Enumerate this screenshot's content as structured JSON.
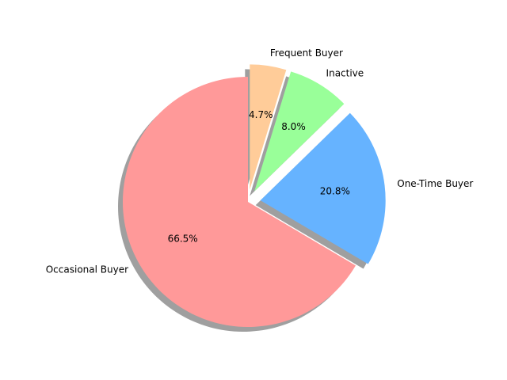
{
  "chart_data": {
    "type": "pie",
    "title": "",
    "start_angle_deg": 90,
    "counterclock": true,
    "shadow": true,
    "slices": [
      {
        "label": "Occasional Buyer",
        "value": 66.5,
        "pct_text": "66.5%",
        "color": "#ff9999",
        "exploded": false
      },
      {
        "label": "One-Time Buyer",
        "value": 20.8,
        "pct_text": "20.8%",
        "color": "#66b3ff",
        "exploded": true
      },
      {
        "label": "Inactive",
        "value": 8.0,
        "pct_text": "8.0%",
        "color": "#99ff99",
        "exploded": true
      },
      {
        "label": "Frequent Buyer",
        "value": 4.7,
        "pct_text": "4.7%",
        "color": "#ffcc99",
        "exploded": true
      }
    ]
  }
}
